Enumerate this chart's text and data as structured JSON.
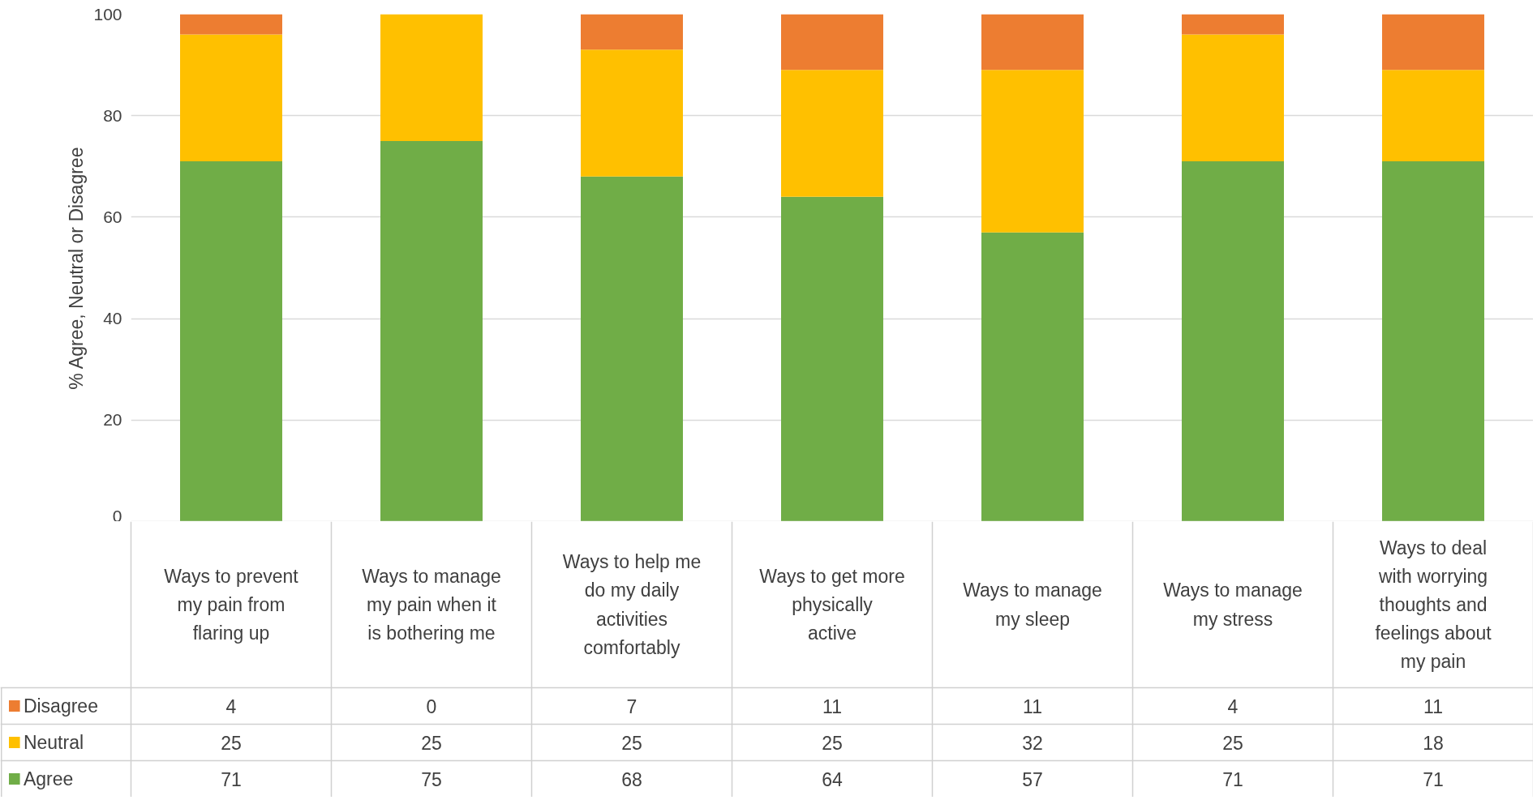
{
  "chart_data": {
    "type": "bar",
    "stacked": true,
    "ylabel": "% Agree, Neutral or Disagree",
    "categories": [
      "Ways to prevent my pain from flaring up",
      "Ways to manage my pain when it is bothering me",
      "Ways to help me do my daily activities comfortably",
      "Ways to get more physically active",
      "Ways to manage my sleep",
      "Ways to manage my stress",
      "Ways to deal with worrying thoughts and feelings about my pain"
    ],
    "series": [
      {
        "name": "Agree",
        "color": "#70ad47",
        "values": [
          71,
          75,
          68,
          64,
          57,
          71,
          71
        ]
      },
      {
        "name": "Neutral",
        "color": "#ffc000",
        "values": [
          25,
          25,
          25,
          25,
          32,
          25,
          18
        ]
      },
      {
        "name": "Disagree",
        "color": "#ed7d31",
        "values": [
          4,
          0,
          7,
          11,
          11,
          4,
          11
        ]
      }
    ],
    "ylim": [
      0,
      100
    ],
    "yticks": [
      0,
      20,
      40,
      60,
      80,
      100
    ],
    "grid": "y",
    "legend": "bottom left",
    "data_labels": true
  }
}
